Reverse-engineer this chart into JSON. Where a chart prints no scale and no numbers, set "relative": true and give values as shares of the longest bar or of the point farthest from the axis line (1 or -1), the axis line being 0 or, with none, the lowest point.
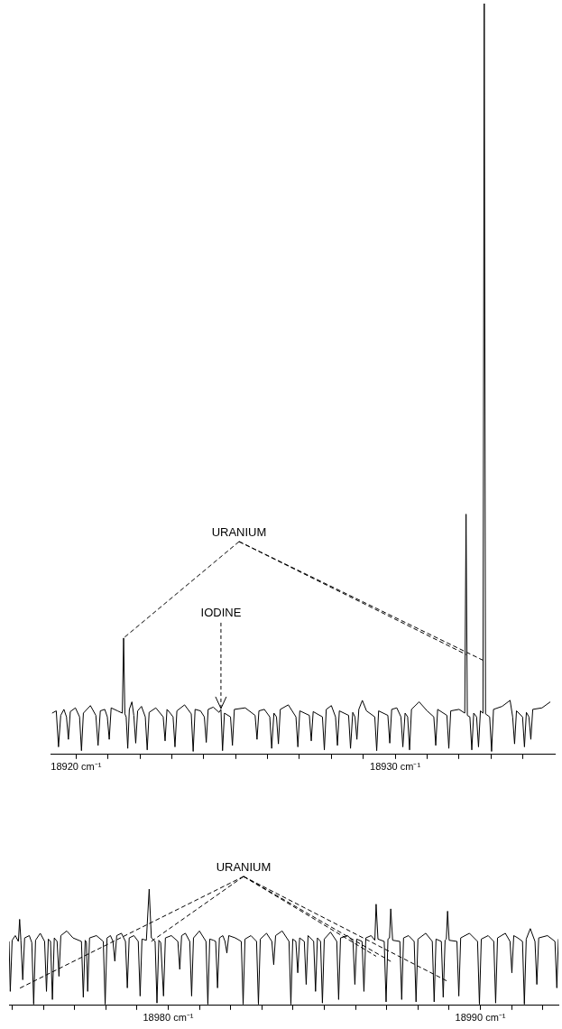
{
  "chart_data": [
    {
      "type": "line",
      "relative": true,
      "legend": false,
      "xlim": [
        18919.2,
        18935.0
      ],
      "xticks": [
        {
          "value": 18920,
          "label": "18920 cm⁻¹"
        },
        {
          "value": 18921,
          "label": null
        },
        {
          "value": 18922,
          "label": null
        },
        {
          "value": 18923,
          "label": null
        },
        {
          "value": 18924,
          "label": null
        },
        {
          "value": 18925,
          "label": null
        },
        {
          "value": 18926,
          "label": null
        },
        {
          "value": 18927,
          "label": null
        },
        {
          "value": 18928,
          "label": null
        },
        {
          "value": 18929,
          "label": null
        },
        {
          "value": 18930,
          "label": "18930 cm⁻¹"
        },
        {
          "value": 18931,
          "label": null
        },
        {
          "value": 18932,
          "label": null
        },
        {
          "value": 18933,
          "label": null
        },
        {
          "value": 18934,
          "label": null
        }
      ],
      "annotations": [
        "URANIUM",
        {
          "text": "IODINE",
          "x": 18924.54,
          "y": 0.06
        }
      ],
      "series": [
        {
          "color": "#000000",
          "x": [
            18919.25,
            18919.38,
            18919.45,
            18919.52,
            18919.62,
            18919.7,
            18919.76,
            18919.82,
            18919.98,
            18920.11,
            18920.17,
            18920.23,
            18920.45,
            18920.62,
            18920.69,
            18920.76,
            18920.9,
            18920.98,
            18921.04,
            18921.1,
            18921.3,
            18921.45,
            18921.49,
            18921.53,
            18921.57,
            18921.62,
            18921.67,
            18921.75,
            18921.81,
            18921.87,
            18921.93,
            18922.05,
            18922.17,
            18922.23,
            18922.29,
            18922.5,
            18922.73,
            18922.79,
            18922.85,
            18922.95,
            18923.04,
            18923.1,
            18923.16,
            18923.4,
            18923.61,
            18923.67,
            18923.73,
            18923.9,
            18924.02,
            18924.08,
            18924.14,
            18924.3,
            18924.48,
            18924.54,
            18924.59,
            18924.65,
            18924.84,
            18924.9,
            18924.96,
            18925.3,
            18925.61,
            18925.67,
            18925.73,
            18925.9,
            18926.07,
            18926.13,
            18926.2,
            18926.28,
            18926.34,
            18926.4,
            18926.65,
            18926.89,
            18926.95,
            18927.01,
            18927.31,
            18927.37,
            18927.43,
            18927.72,
            18927.78,
            18927.84,
            18928.0,
            18928.13,
            18928.19,
            18928.25,
            18928.54,
            18928.6,
            18928.67,
            18928.74,
            18928.8,
            18928.86,
            18928.97,
            18929.1,
            18929.36,
            18929.42,
            18929.48,
            18929.77,
            18929.83,
            18929.89,
            18930.05,
            18930.18,
            18930.24,
            18930.31,
            18930.39,
            18930.45,
            18930.51,
            18930.75,
            18931.0,
            18931.21,
            18931.27,
            18931.33,
            18931.62,
            18931.68,
            18931.74,
            18932.0,
            18932.18,
            18932.22,
            18932.26,
            18932.34,
            18932.4,
            18932.46,
            18932.55,
            18932.61,
            18932.67,
            18932.75,
            18932.79,
            18932.83,
            18932.96,
            18933.02,
            18933.08,
            18933.35,
            18933.6,
            18933.68,
            18933.74,
            18933.8,
            18933.99,
            18934.05,
            18934.11,
            18934.19,
            18934.25,
            18934.31,
            18934.6,
            18934.86
          ],
          "values": [
            0.055,
            0.058,
            0.01,
            0.052,
            0.06,
            0.05,
            0.02,
            0.057,
            0.062,
            0.05,
            0.005,
            0.055,
            0.065,
            0.052,
            0.012,
            0.058,
            0.06,
            0.05,
            0.02,
            0.062,
            0.058,
            0.055,
            0.155,
            0.054,
            0.05,
            0.008,
            0.06,
            0.07,
            0.052,
            0.015,
            0.058,
            0.064,
            0.05,
            0.006,
            0.056,
            0.062,
            0.05,
            0.018,
            0.06,
            0.055,
            0.05,
            0.01,
            0.058,
            0.066,
            0.054,
            0.004,
            0.06,
            0.058,
            0.05,
            0.016,
            0.06,
            0.063,
            0.056,
            0.06,
            0.005,
            0.055,
            0.05,
            0.012,
            0.06,
            0.062,
            0.052,
            0.02,
            0.058,
            0.06,
            0.05,
            0.008,
            0.055,
            0.05,
            0.014,
            0.06,
            0.066,
            0.05,
            0.01,
            0.058,
            0.052,
            0.018,
            0.057,
            0.05,
            0.006,
            0.06,
            0.065,
            0.05,
            0.012,
            0.058,
            0.052,
            0.008,
            0.056,
            0.05,
            0.02,
            0.06,
            0.072,
            0.058,
            0.05,
            0.005,
            0.058,
            0.052,
            0.015,
            0.06,
            0.062,
            0.05,
            0.01,
            0.055,
            0.05,
            0.006,
            0.06,
            0.07,
            0.058,
            0.05,
            0.012,
            0.06,
            0.052,
            0.008,
            0.058,
            0.06,
            0.055,
            0.32,
            0.052,
            0.05,
            0.006,
            0.055,
            0.05,
            0.01,
            0.058,
            0.055,
            1,
            0.054,
            0.05,
            0.004,
            0.06,
            0.064,
            0.072,
            0.05,
            0.014,
            0.058,
            0.05,
            0.01,
            0.056,
            0.05,
            0.02,
            0.06,
            0.062,
            0.07
          ]
        }
      ]
    },
    {
      "type": "line",
      "relative": true,
      "legend": false,
      "xlim": [
        18974.9,
        18992.5
      ],
      "xticks": [
        {
          "value": 18975,
          "label": null
        },
        {
          "value": 18976,
          "label": null
        },
        {
          "value": 18977,
          "label": null
        },
        {
          "value": 18978,
          "label": null
        },
        {
          "value": 18979,
          "label": null
        },
        {
          "value": 18980,
          "label": "18980 cm⁻¹"
        },
        {
          "value": 18981,
          "label": null
        },
        {
          "value": 18982,
          "label": null
        },
        {
          "value": 18983,
          "label": null
        },
        {
          "value": 18984,
          "label": null
        },
        {
          "value": 18985,
          "label": null
        },
        {
          "value": 18986,
          "label": null
        },
        {
          "value": 18987,
          "label": null
        },
        {
          "value": 18988,
          "label": null
        },
        {
          "value": 18989,
          "label": null
        },
        {
          "value": 18990,
          "label": "18990 cm⁻¹"
        },
        {
          "value": 18991,
          "label": null
        },
        {
          "value": 18992,
          "label": null
        }
      ],
      "annotations": [
        "URANIUM"
      ],
      "series": [
        {
          "color": "#000000",
          "x": [
            18974.9,
            18974.94,
            18975.0,
            18975.1,
            18975.2,
            18975.24,
            18975.28,
            18975.34,
            18975.4,
            18975.55,
            18975.63,
            18975.69,
            18975.75,
            18975.9,
            18976.04,
            18976.1,
            18976.16,
            18976.23,
            18976.29,
            18976.35,
            18976.44,
            18976.5,
            18976.56,
            18976.75,
            18976.95,
            18977.22,
            18977.28,
            18977.34,
            18977.38,
            18977.42,
            18977.48,
            18977.7,
            18977.92,
            18977.98,
            18978.04,
            18978.15,
            18978.23,
            18978.29,
            18978.35,
            18978.5,
            18978.63,
            18978.69,
            18978.75,
            18978.9,
            18979.04,
            18979.1,
            18979.16,
            18979.3,
            18979.39,
            18979.46,
            18979.58,
            18979.64,
            18979.7,
            18979.76,
            18979.85,
            18979.91,
            18980.1,
            18980.31,
            18980.37,
            18980.43,
            18980.55,
            18980.69,
            18980.75,
            18980.81,
            18981.0,
            18981.21,
            18981.27,
            18981.33,
            18981.45,
            18981.52,
            18981.58,
            18981.64,
            18981.75,
            18981.82,
            18981.88,
            18981.94,
            18982.15,
            18982.34,
            18982.4,
            18982.46,
            18982.65,
            18982.83,
            18982.89,
            18982.95,
            18983.15,
            18983.32,
            18983.38,
            18983.44,
            18983.65,
            18983.87,
            18983.93,
            18983.99,
            18984.09,
            18984.15,
            18984.21,
            18984.36,
            18984.42,
            18984.48,
            18984.66,
            18984.72,
            18984.78,
            18984.88,
            18984.94,
            18985.0,
            18985.2,
            18985.4,
            18985.46,
            18985.52,
            18985.75,
            18985.92,
            18985.98,
            18986.04,
            18986.21,
            18986.27,
            18986.33,
            18986.5,
            18986.62,
            18986.66,
            18986.72,
            18986.92,
            18986.98,
            18987.04,
            18987.09,
            18987.13,
            18987.19,
            18987.42,
            18987.48,
            18987.54,
            18987.7,
            18987.88,
            18987.94,
            18988.0,
            18988.25,
            18988.46,
            18988.52,
            18988.58,
            18988.75,
            18988.81,
            18988.87,
            18988.91,
            18988.95,
            18989.0,
            18989.25,
            18989.31,
            18989.37,
            18989.65,
            18989.91,
            18989.97,
            18990.03,
            18990.25,
            18990.43,
            18990.49,
            18990.55,
            18990.8,
            18990.95,
            18991.01,
            18991.07,
            18991.2,
            18991.35,
            18991.41,
            18991.47,
            18991.6,
            18991.75,
            18991.81,
            18991.87,
            18992.15,
            18992.39,
            18992.45,
            18992.5
          ],
          "values": [
            0.55,
            0.12,
            0.56,
            0.6,
            0.55,
            0.74,
            0.56,
            0.22,
            0.58,
            0.6,
            0.54,
            0.01,
            0.56,
            0.62,
            0.55,
            0.12,
            0.57,
            0.55,
            0.05,
            0.58,
            0.55,
            0.25,
            0.6,
            0.64,
            0.58,
            0.55,
            0.07,
            0.56,
            0.54,
            0.12,
            0.58,
            0.6,
            0.55,
            0.01,
            0.58,
            0.6,
            0.55,
            0.38,
            0.6,
            0.62,
            0.55,
            0.15,
            0.58,
            0.6,
            0.55,
            0.08,
            0.57,
            0.56,
            1,
            0.58,
            0.55,
            0.02,
            0.56,
            0.54,
            0.08,
            0.58,
            0.6,
            0.55,
            0.31,
            0.6,
            0.62,
            0.55,
            0.08,
            0.58,
            0.64,
            0.55,
            0.01,
            0.57,
            0.56,
            0.55,
            0.15,
            0.58,
            0.6,
            0.55,
            0.45,
            0.6,
            0.58,
            0.55,
            0.01,
            0.57,
            0.6,
            0.55,
            0.01,
            0.57,
            0.62,
            0.55,
            0.35,
            0.6,
            0.64,
            0.55,
            0.01,
            0.57,
            0.55,
            0.28,
            0.58,
            0.55,
            0.18,
            0.6,
            0.55,
            0.12,
            0.58,
            0.55,
            0.02,
            0.57,
            0.63,
            0.55,
            0.05,
            0.58,
            0.6,
            0.55,
            0.18,
            0.57,
            0.55,
            0.12,
            0.58,
            0.6,
            0.56,
            0.87,
            0.57,
            0.55,
            0.03,
            0.57,
            0.58,
            0.83,
            0.56,
            0.55,
            0.05,
            0.58,
            0.6,
            0.55,
            0.03,
            0.57,
            0.62,
            0.55,
            0.03,
            0.57,
            0.55,
            0.07,
            0.56,
            0.57,
            0.81,
            0.56,
            0.55,
            0.08,
            0.58,
            0.62,
            0.55,
            0.01,
            0.57,
            0.6,
            0.55,
            0.02,
            0.58,
            0.62,
            0.55,
            0.28,
            0.6,
            0.58,
            0.55,
            0.01,
            0.57,
            0.66,
            0.55,
            0.18,
            0.58,
            0.6,
            0.55,
            0.15,
            0.57
          ]
        }
      ]
    }
  ]
}
